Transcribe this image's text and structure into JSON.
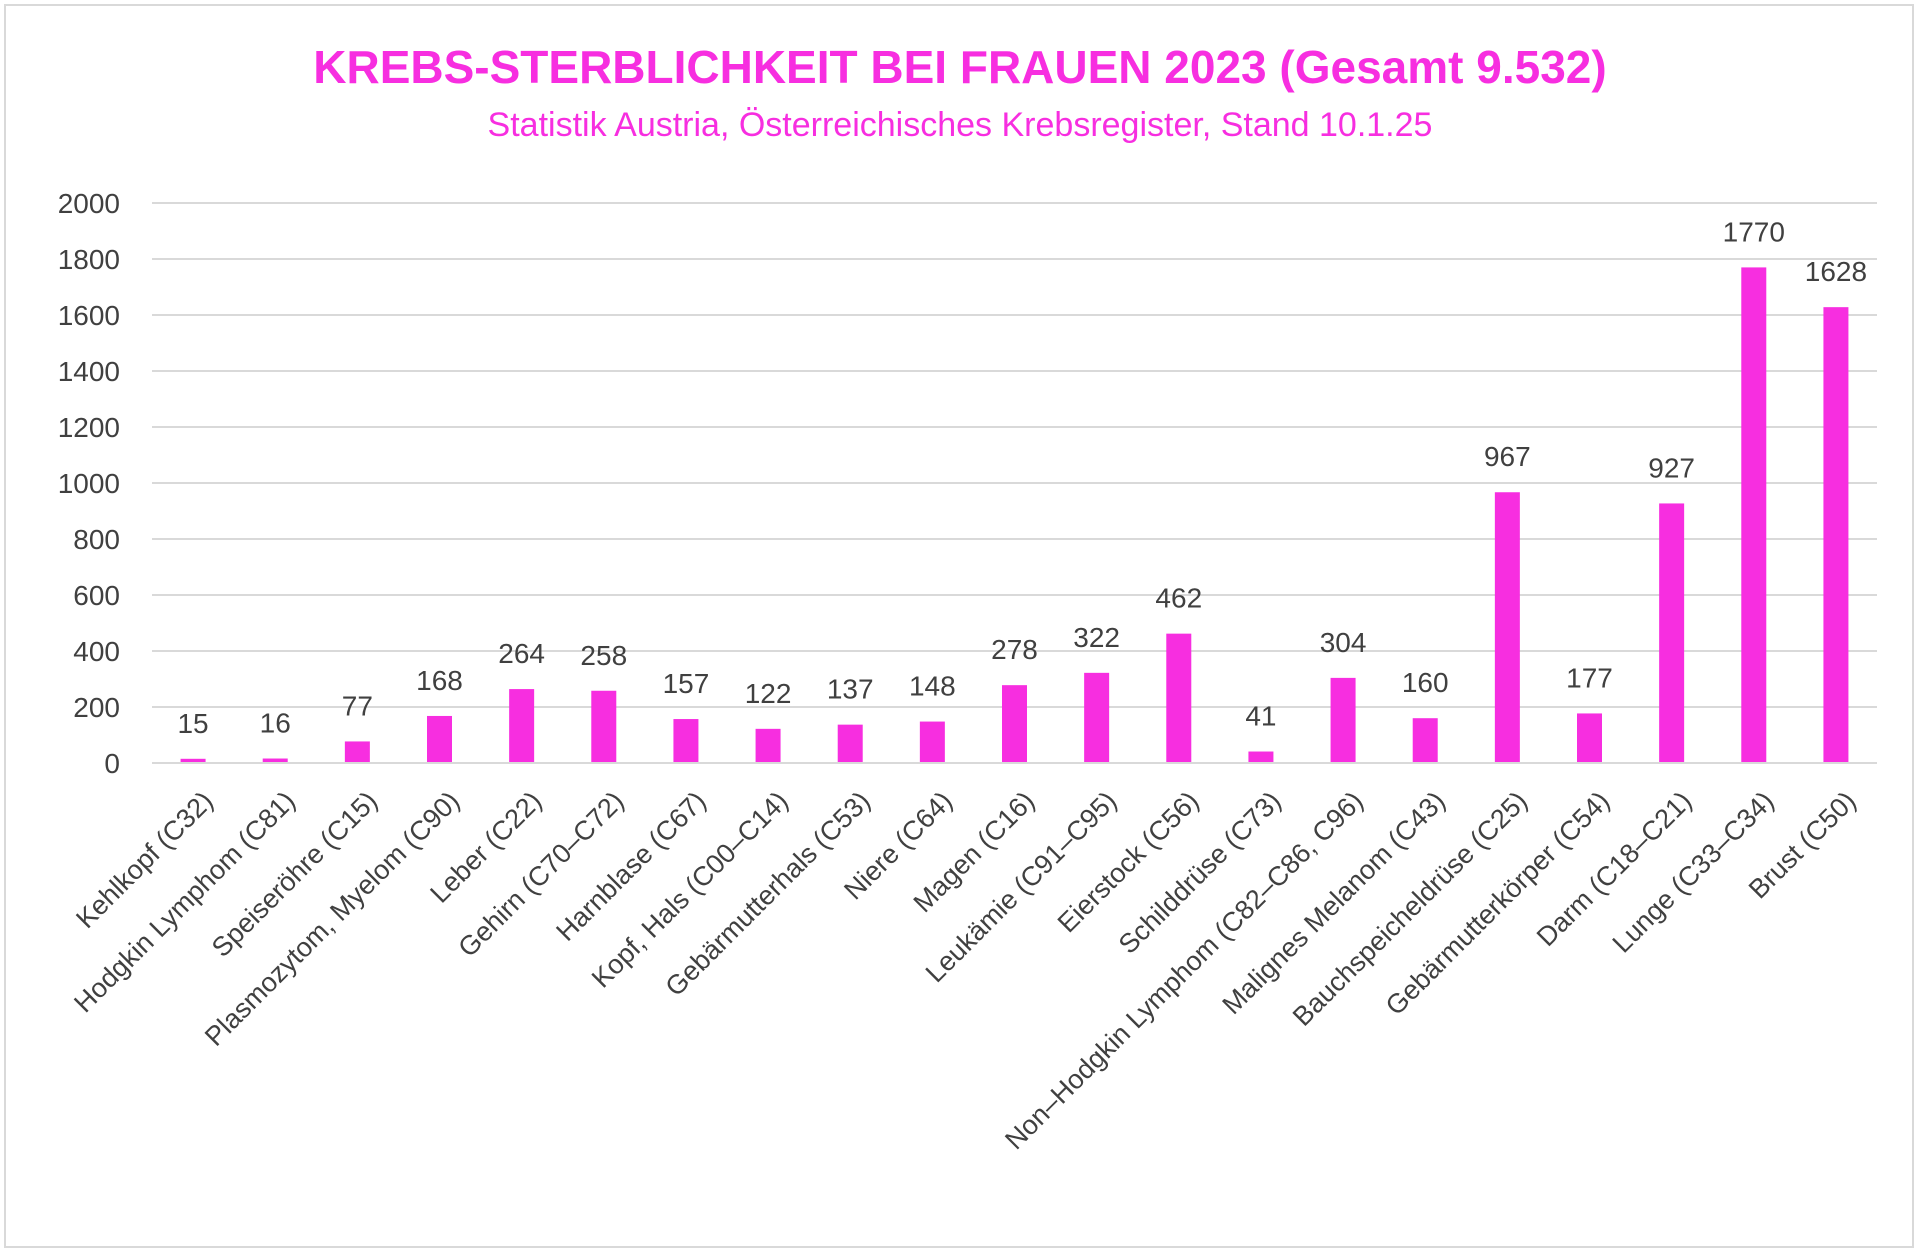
{
  "chart_data": {
    "type": "bar",
    "title": "KREBS-STERBLICHKEIT BEI FRAUEN 2023 (Gesamt 9.532)",
    "subtitle": "Statistik Austria, Österreichisches Krebsregister, Stand 10.1.25",
    "categories": [
      "Kehlkopf (C32)",
      "Hodgkin Lymphom (C81)",
      "Speiseröhre (C15)",
      "Plasmozytom, Myelom (C90)",
      "Leber (C22)",
      "Gehirn (C70–C72)",
      "Harnblase (C67)",
      "Kopf, Hals (C00–C14)",
      "Gebärmutterhals (C53)",
      "Niere (C64)",
      "Magen (C16)",
      "Leukämie (C91–C95)",
      "Eierstock (C56)",
      "Schilddrüse (C73)",
      "Non–Hodgkin Lymphom (C82–C86, C96)",
      "Malignes Melanom (C43)",
      "Bauchspeicheldrüse (C25)",
      "Gebärmutterkörper (C54)",
      "Darm (C18–C21)",
      "Lunge (C33–C34)",
      "Brust (C50)"
    ],
    "values": [
      15,
      16,
      77,
      168,
      264,
      258,
      157,
      122,
      137,
      148,
      278,
      322,
      462,
      41,
      304,
      160,
      967,
      177,
      927,
      1770,
      1628
    ],
    "yticks": [
      "0",
      "200",
      "400",
      "600",
      "800",
      "1000",
      "1200",
      "1400",
      "1600",
      "1800",
      "2000"
    ],
    "ylim": [
      0,
      2000
    ],
    "xlabel": "",
    "ylabel": "",
    "grid": true,
    "bar_color": "#f72ee0",
    "grid_color": "#d9d9d9"
  }
}
